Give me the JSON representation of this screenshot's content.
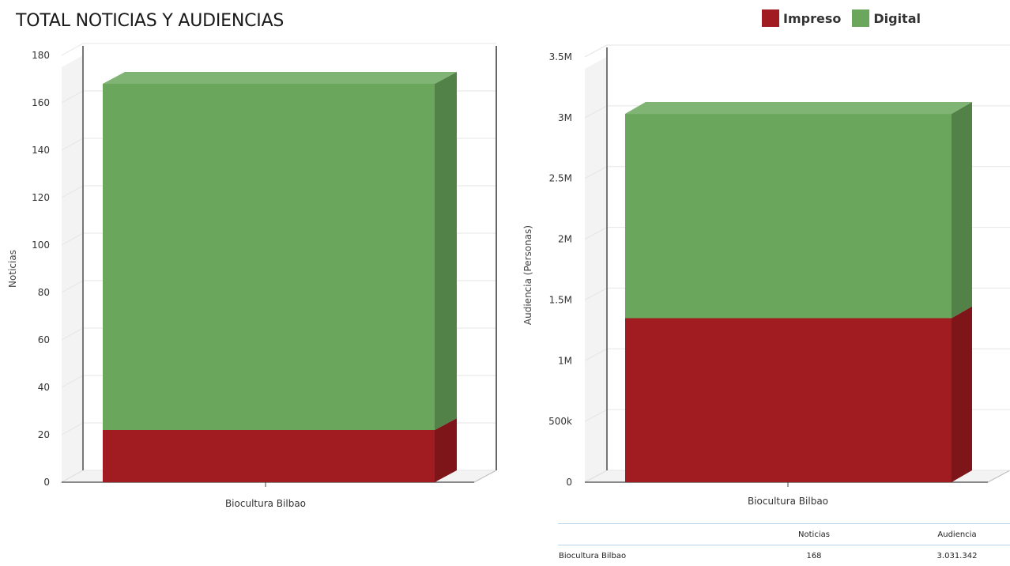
{
  "page": {
    "title": "TOTAL NOTICIAS Y AUDIENCIAS"
  },
  "legend": [
    {
      "label": "Impreso",
      "color": "#a11c20"
    },
    {
      "label": "Digital",
      "color": "#6aa75c"
    }
  ],
  "chart_data": [
    {
      "type": "bar",
      "stacked": true,
      "three_d": true,
      "categories": [
        "Biocultura Bilbao"
      ],
      "series": [
        {
          "name": "Impreso",
          "values": [
            22
          ],
          "color": "#a11c20"
        },
        {
          "name": "Digital",
          "values": [
            146
          ],
          "color": "#6aa75c"
        }
      ],
      "ylabel": "Noticias",
      "ylim": [
        0,
        180
      ],
      "yticks": [
        0,
        20,
        40,
        60,
        80,
        100,
        120,
        140,
        160,
        180
      ],
      "ytick_labels": [
        "0",
        "20",
        "40",
        "60",
        "80",
        "100",
        "120",
        "140",
        "160",
        "180"
      ],
      "grid": true
    },
    {
      "type": "bar",
      "stacked": true,
      "three_d": true,
      "categories": [
        "Biocultura Bilbao"
      ],
      "series": [
        {
          "name": "Impreso",
          "values": [
            1350000
          ],
          "color": "#a11c20"
        },
        {
          "name": "Digital",
          "values": [
            1681342
          ],
          "color": "#6aa75c"
        }
      ],
      "ylabel": "Audiencia (Personas)",
      "ylim": [
        0,
        3500000
      ],
      "yticks": [
        0,
        500000,
        1000000,
        1500000,
        2000000,
        2500000,
        3000000,
        3500000
      ],
      "ytick_labels": [
        "0",
        "500k",
        "1M",
        "1.5M",
        "2M",
        "2.5M",
        "3M",
        "3.5M"
      ],
      "grid": true
    }
  ],
  "table": {
    "headers": [
      "",
      "Noticias",
      "Audiencia"
    ],
    "rows": [
      [
        "Biocultura Bilbao",
        "168",
        "3.031.342"
      ]
    ]
  }
}
